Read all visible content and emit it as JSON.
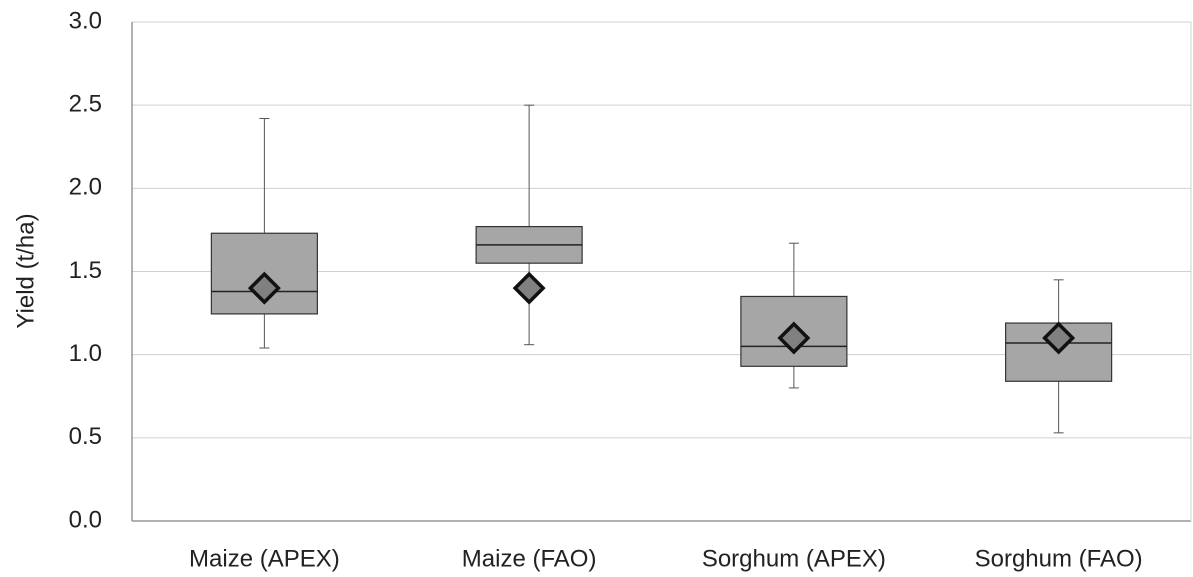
{
  "chart_data": {
    "type": "box",
    "y_label": "Yield (t/ha)",
    "categories": [
      "Maize (APEX)",
      "Maize (FAO)",
      "Sorghum (APEX)",
      "Sorghum (FAO)"
    ],
    "min": [
      1.04,
      1.06,
      0.8,
      0.53
    ],
    "q1": [
      1.245,
      1.55,
      0.93,
      0.84
    ],
    "median": [
      1.38,
      1.66,
      1.05,
      1.07
    ],
    "q3": [
      1.73,
      1.77,
      1.35,
      1.19
    ],
    "max": [
      2.42,
      2.5,
      1.67,
      1.45
    ],
    "mean": [
      1.4,
      1.4,
      1.1,
      1.1
    ],
    "box_color": "#a6a6a6",
    "mean_color": "#808080",
    "ylim": [
      0,
      3
    ],
    "yticks": [
      {
        "value": 0,
        "label": "0.0"
      },
      {
        "value": 0.5,
        "label": "0.5"
      },
      {
        "value": 1,
        "label": "1.0"
      },
      {
        "value": 1.5,
        "label": "1.5"
      },
      {
        "value": 2,
        "label": "2.0"
      },
      {
        "value": 2.5,
        "label": "2.5"
      },
      {
        "value": 3,
        "label": "3.0"
      }
    ],
    "grid": true
  }
}
